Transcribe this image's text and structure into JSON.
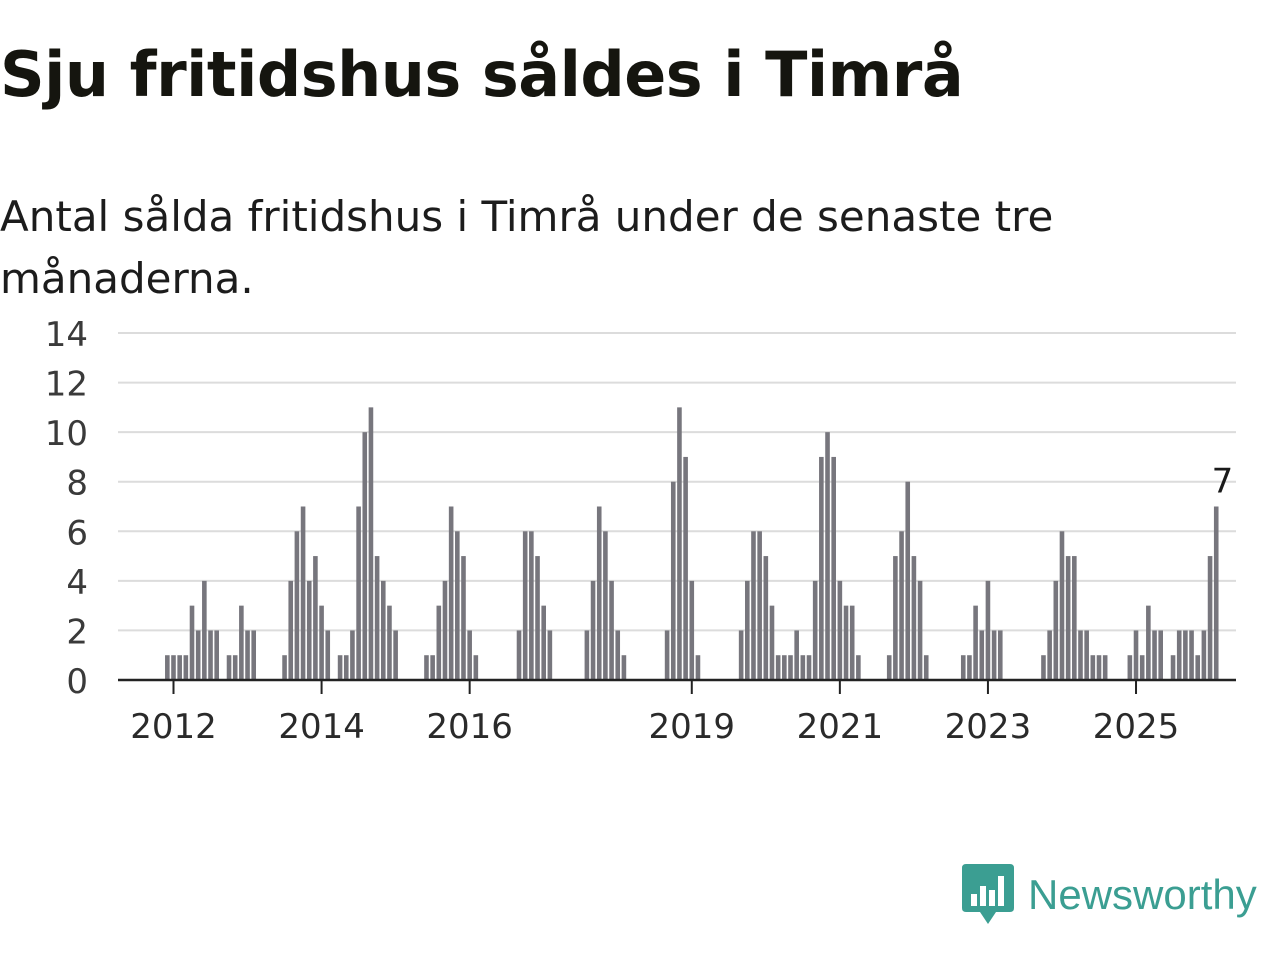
{
  "header": {
    "title": "Sju fritidshus såldes i Timrå",
    "subtitle": "Antal sålda fritidshus i Timrå under de senaste tre månaderna."
  },
  "brand": {
    "name": "Newsworthy",
    "icon": "newsworthy-logo-icon",
    "color": "#3b9e92"
  },
  "chart_data": {
    "type": "bar",
    "colors": {
      "bar": "#77767d",
      "highlight": "#1f9d94",
      "grid": "#dcdcdc",
      "axis": "#222222"
    },
    "ylim": [
      0,
      14
    ],
    "yticks": [
      0,
      2,
      4,
      6,
      8,
      10,
      12,
      14
    ],
    "grid": true,
    "xtick_labels": [
      {
        "label": "2012",
        "index": 0
      },
      {
        "label": "2014",
        "index": 24
      },
      {
        "label": "2016",
        "index": 48
      },
      {
        "label": "2019",
        "index": 84
      },
      {
        "label": "2021",
        "index": 108
      },
      {
        "label": "2023",
        "index": 132
      },
      {
        "label": "2025",
        "index": 156
      }
    ],
    "bar_offset": -1,
    "values": [
      1,
      1,
      1,
      1,
      3,
      2,
      4,
      2,
      2,
      0,
      1,
      1,
      3,
      2,
      2,
      0,
      0,
      0,
      0,
      1,
      4,
      6,
      7,
      4,
      5,
      3,
      2,
      0,
      1,
      1,
      2,
      7,
      10,
      11,
      5,
      4,
      3,
      2,
      0,
      0,
      0,
      0,
      1,
      1,
      3,
      4,
      7,
      6,
      5,
      2,
      1,
      0,
      0,
      0,
      0,
      0,
      0,
      2,
      6,
      6,
      5,
      3,
      2,
      0,
      0,
      0,
      0,
      0,
      2,
      4,
      7,
      6,
      4,
      2,
      1,
      0,
      0,
      0,
      0,
      0,
      0,
      2,
      8,
      11,
      9,
      4,
      1,
      0,
      0,
      0,
      0,
      0,
      0,
      2,
      4,
      6,
      6,
      5,
      3,
      1,
      1,
      1,
      2,
      1,
      1,
      4,
      9,
      10,
      9,
      4,
      3,
      3,
      1,
      0,
      0,
      0,
      0,
      1,
      5,
      6,
      8,
      5,
      4,
      1,
      0,
      0,
      0,
      0,
      0,
      1,
      1,
      3,
      2,
      4,
      2,
      2,
      0,
      0,
      0,
      0,
      0,
      0,
      1,
      2,
      4,
      6,
      5,
      5,
      2,
      2,
      1,
      1,
      1,
      0,
      0,
      0,
      1,
      2,
      1,
      3,
      2,
      2,
      0,
      1,
      2,
      2,
      2,
      1,
      2,
      5,
      7
    ],
    "highlight": {
      "index": 171,
      "value": 7,
      "label": "7"
    }
  }
}
